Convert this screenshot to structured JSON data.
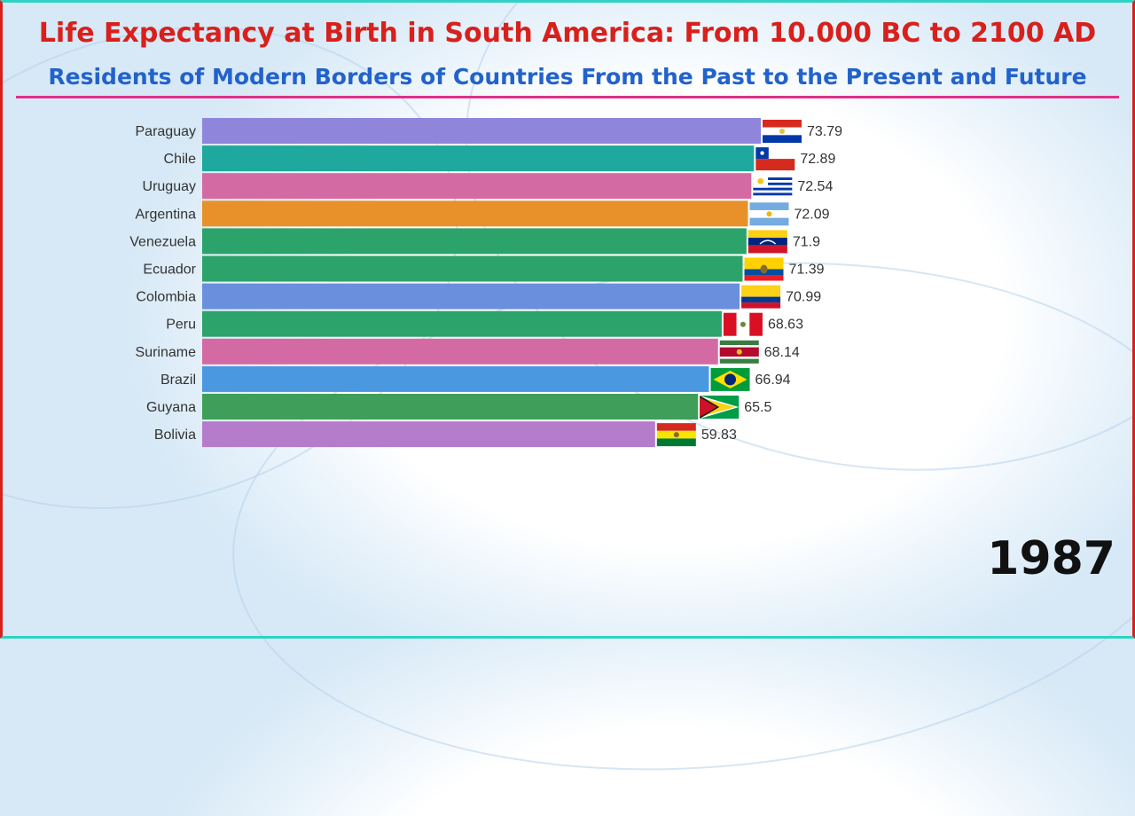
{
  "header": {
    "title": "Life Expectancy at Birth in South America: From 10.000 BC to 2100 AD",
    "subtitle": "Residents of Modern Borders of Countries From the Past to the Present and Future"
  },
  "year": "1987",
  "chart_data": {
    "type": "bar",
    "orientation": "horizontal",
    "xlim": [
      0,
      75
    ],
    "categories": [
      "Paraguay",
      "Chile",
      "Uruguay",
      "Argentina",
      "Venezuela",
      "Ecuador",
      "Colombia",
      "Peru",
      "Suriname",
      "Brazil",
      "Guyana",
      "Bolivia"
    ],
    "values": [
      73.79,
      72.89,
      72.54,
      72.09,
      71.9,
      71.39,
      70.99,
      68.63,
      68.14,
      66.94,
      65.5,
      59.83
    ],
    "value_labels": [
      "73.79",
      "72.89",
      "72.54",
      "72.09",
      "71.9",
      "71.39",
      "70.99",
      "68.63",
      "68.14",
      "66.94",
      "65.5",
      "59.83"
    ],
    "colors": [
      "#8f86dc",
      "#1fa89e",
      "#d46aa4",
      "#e8902a",
      "#2ba36a",
      "#2ba36a",
      "#6a8fdc",
      "#2ba36a",
      "#d46aa4",
      "#4a98e0",
      "#3f9f5a",
      "#b57ccc"
    ],
    "flag_icons": [
      "flag-paraguay-icon",
      "flag-chile-icon",
      "flag-uruguay-icon",
      "flag-argentina-icon",
      "flag-venezuela-icon",
      "flag-ecuador-icon",
      "flag-colombia-icon",
      "flag-peru-icon",
      "flag-suriname-icon",
      "flag-brazil-icon",
      "flag-guyana-icon",
      "flag-bolivia-icon"
    ],
    "grid": false,
    "legend": "none"
  }
}
